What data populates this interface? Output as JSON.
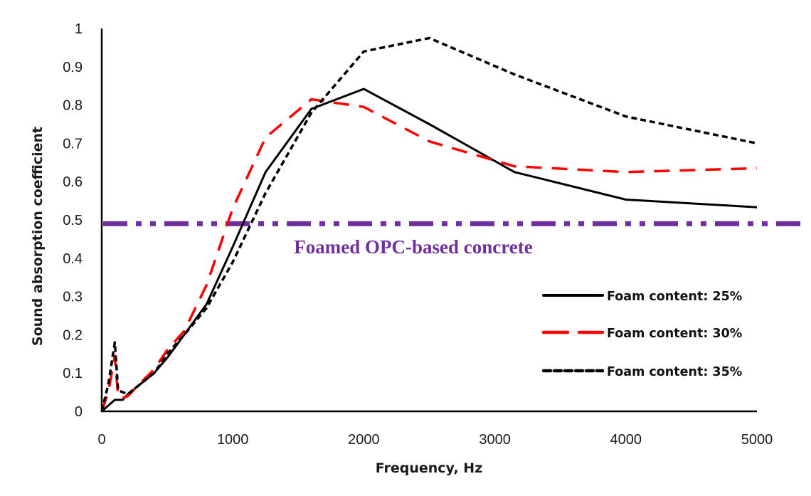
{
  "chart_data": {
    "type": "line",
    "title": "",
    "xlabel": "Frequency, Hz",
    "ylabel": "Sound absorption coefficient",
    "xlim": [
      0,
      5000
    ],
    "ylim": [
      0,
      1
    ],
    "x_ticks": [
      "0",
      "1000",
      "2000",
      "3000",
      "4000",
      "5000"
    ],
    "x_tick_values": [
      0,
      1000,
      2000,
      3000,
      4000,
      5000
    ],
    "y_ticks": [
      "0",
      "0.1",
      "0.2",
      "0.3",
      "0.4",
      "0.5",
      "0.6",
      "0.7",
      "0.8",
      "0.9",
      "1"
    ],
    "y_tick_values": [
      0,
      0.1,
      0.2,
      0.3,
      0.4,
      0.5,
      0.6,
      0.7,
      0.8,
      0.9,
      1
    ],
    "grid": false,
    "legend_position": "bottom-right",
    "series": [
      {
        "name": "Foam content: 25%",
        "color": "#000000",
        "style": "solid",
        "x": [
          0,
          100,
          160,
          200,
          400,
          500,
          630,
          800,
          1000,
          1250,
          1600,
          2000,
          2500,
          3150,
          4000,
          5000
        ],
        "y": [
          0,
          0.03,
          0.03,
          0.045,
          0.1,
          0.14,
          0.2,
          0.28,
          0.43,
          0.625,
          0.79,
          0.842,
          0.75,
          0.625,
          0.553,
          0.533
        ]
      },
      {
        "name": "Foam content: 30%",
        "color": "#ff0000",
        "style": "long-dash",
        "x": [
          0,
          50,
          100,
          125,
          160,
          200,
          400,
          500,
          630,
          800,
          1000,
          1250,
          1600,
          2000,
          2500,
          3150,
          4000,
          5000
        ],
        "y": [
          0,
          0.05,
          0.145,
          0.04,
          0.035,
          0.04,
          0.11,
          0.16,
          0.21,
          0.33,
          0.53,
          0.715,
          0.815,
          0.795,
          0.705,
          0.64,
          0.625,
          0.635
        ]
      },
      {
        "name": "Foam content: 35%",
        "color": "#000000",
        "style": "short-dash",
        "x": [
          0,
          50,
          100,
          125,
          160,
          200,
          400,
          500,
          630,
          800,
          1000,
          1250,
          1600,
          2000,
          2500,
          3150,
          4000,
          5000
        ],
        "y": [
          0,
          0.07,
          0.18,
          0.055,
          0.05,
          0.045,
          0.1,
          0.15,
          0.2,
          0.27,
          0.39,
          0.57,
          0.78,
          0.94,
          0.975,
          0.88,
          0.77,
          0.7
        ]
      }
    ],
    "reference_line": {
      "label": "Foamed OPC-based concrete",
      "y": 0.49,
      "color": "#7030a0",
      "style": "dash-dot-dot"
    }
  }
}
